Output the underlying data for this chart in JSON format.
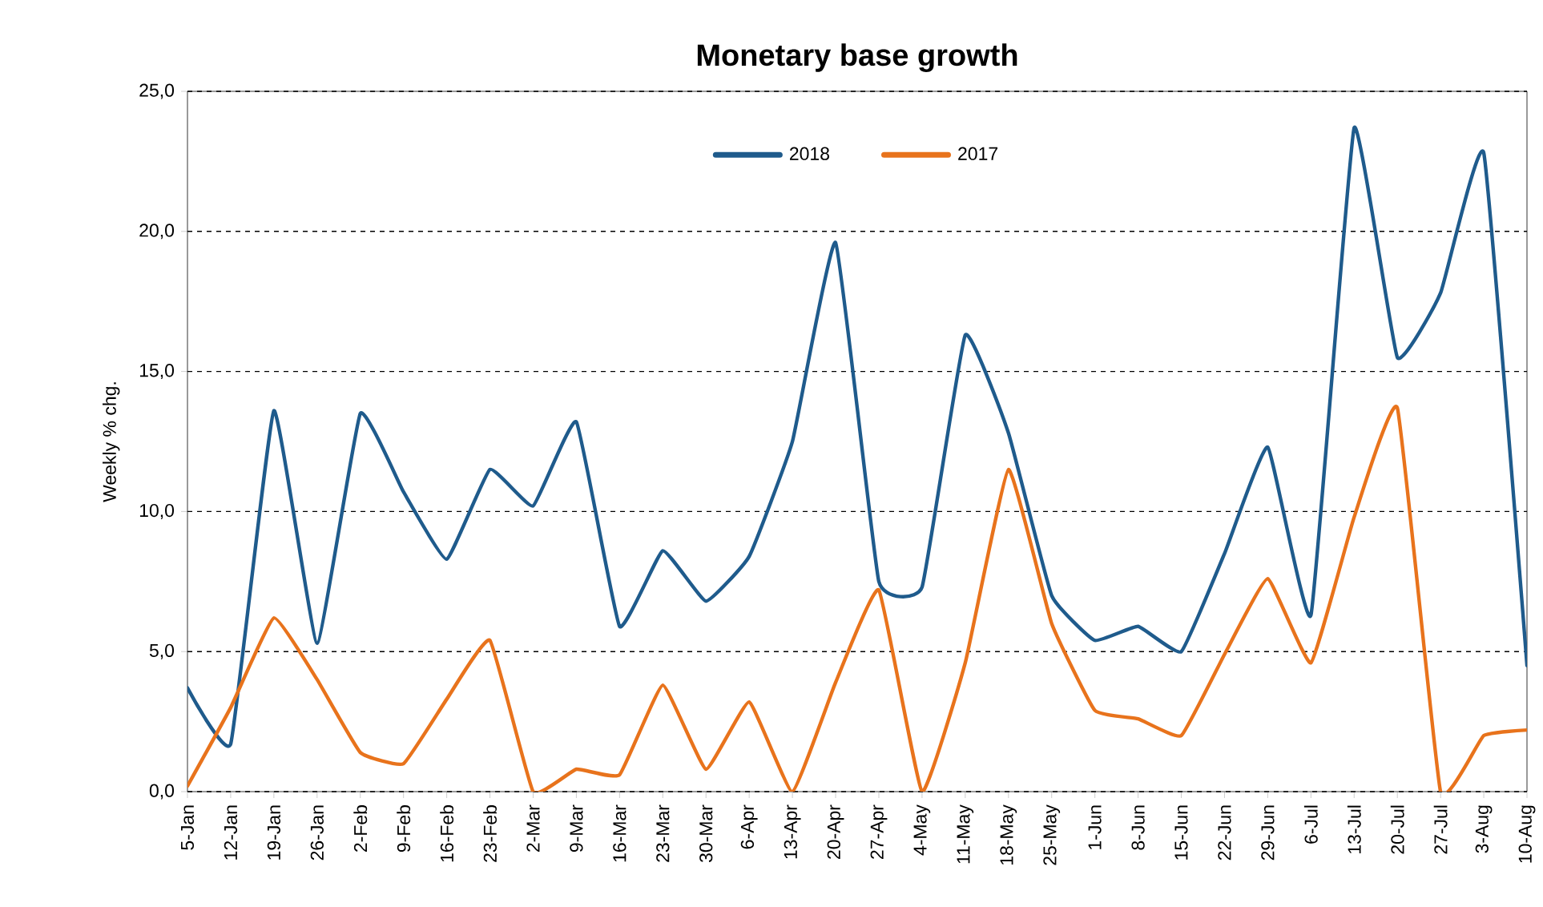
{
  "chart_data": {
    "type": "line",
    "title": "Monetary base growth",
    "ylabel": "Weekly % chg.",
    "categories": [
      "5-Jan",
      "12-Jan",
      "19-Jan",
      "26-Jan",
      "2-Feb",
      "9-Feb",
      "16-Feb",
      "23-Feb",
      "2-Mar",
      "9-Mar",
      "16-Mar",
      "23-Mar",
      "30-Mar",
      "6-Apr",
      "13-Apr",
      "20-Apr",
      "27-Apr",
      "4-May",
      "11-May",
      "18-May",
      "25-May",
      "1-Jun",
      "8-Jun",
      "15-Jun",
      "22-Jun",
      "29-Jun",
      "6-Jul",
      "13-Jul",
      "20-Jul",
      "27-Jul",
      "3-Aug",
      "10-Aug"
    ],
    "series": [
      {
        "name": "2018",
        "color": "#1f5b8c",
        "values": [
          3.7,
          1.7,
          13.6,
          5.3,
          13.5,
          10.7,
          8.3,
          11.5,
          10.2,
          13.2,
          5.9,
          8.6,
          6.8,
          8.4,
          12.5,
          19.6,
          7.5,
          7.3,
          16.3,
          12.8,
          7.0,
          5.4,
          5.9,
          5.0,
          8.5,
          12.3,
          6.3,
          23.7,
          15.5,
          17.8,
          22.8,
          4.5
        ]
      },
      {
        "name": "2017",
        "color": "#e8731c",
        "values": [
          0.2,
          3.0,
          6.2,
          4.0,
          1.4,
          1.0,
          3.3,
          5.4,
          0.0,
          0.8,
          0.6,
          3.8,
          0.8,
          3.2,
          0.0,
          3.9,
          7.2,
          0.0,
          4.6,
          11.5,
          6.0,
          2.9,
          2.6,
          2.0,
          4.9,
          7.6,
          4.6,
          9.8,
          13.7,
          0.0,
          2.0,
          2.2
        ]
      }
    ],
    "ylim": [
      0,
      25
    ],
    "yticks": [
      {
        "value": 0,
        "label": "0,0"
      },
      {
        "value": 5,
        "label": "5,0"
      },
      {
        "value": 10,
        "label": "10,0"
      },
      {
        "value": 15,
        "label": "15,0"
      },
      {
        "value": 20,
        "label": "20,0"
      },
      {
        "value": 25,
        "label": "25,0"
      }
    ],
    "grid": "y",
    "legend": "top",
    "marker": "none",
    "line_style": "solid"
  }
}
